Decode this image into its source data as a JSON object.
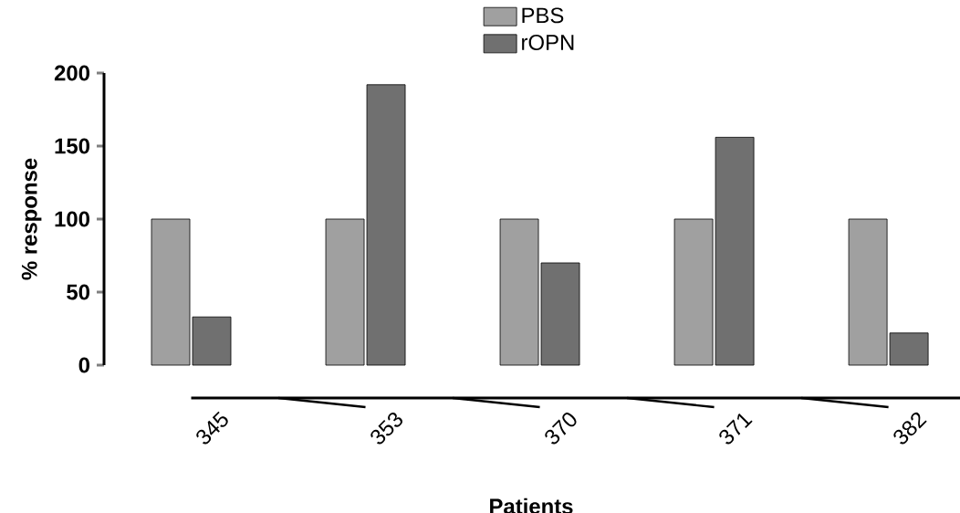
{
  "chart_data": {
    "type": "bar",
    "xlabel": "Patients",
    "ylabel": "% response",
    "categories": [
      "345",
      "353",
      "370",
      "371",
      "382"
    ],
    "series": [
      {
        "name": "PBS",
        "color": "#a0a0a0",
        "values": [
          100,
          100,
          100,
          100,
          100
        ]
      },
      {
        "name": "rOPN",
        "color": "#707070",
        "values": [
          33,
          192,
          70,
          156,
          22
        ]
      }
    ],
    "ylim": [
      0,
      200
    ],
    "yticks": [
      0,
      50,
      100,
      150,
      200
    ],
    "legend": "top"
  }
}
